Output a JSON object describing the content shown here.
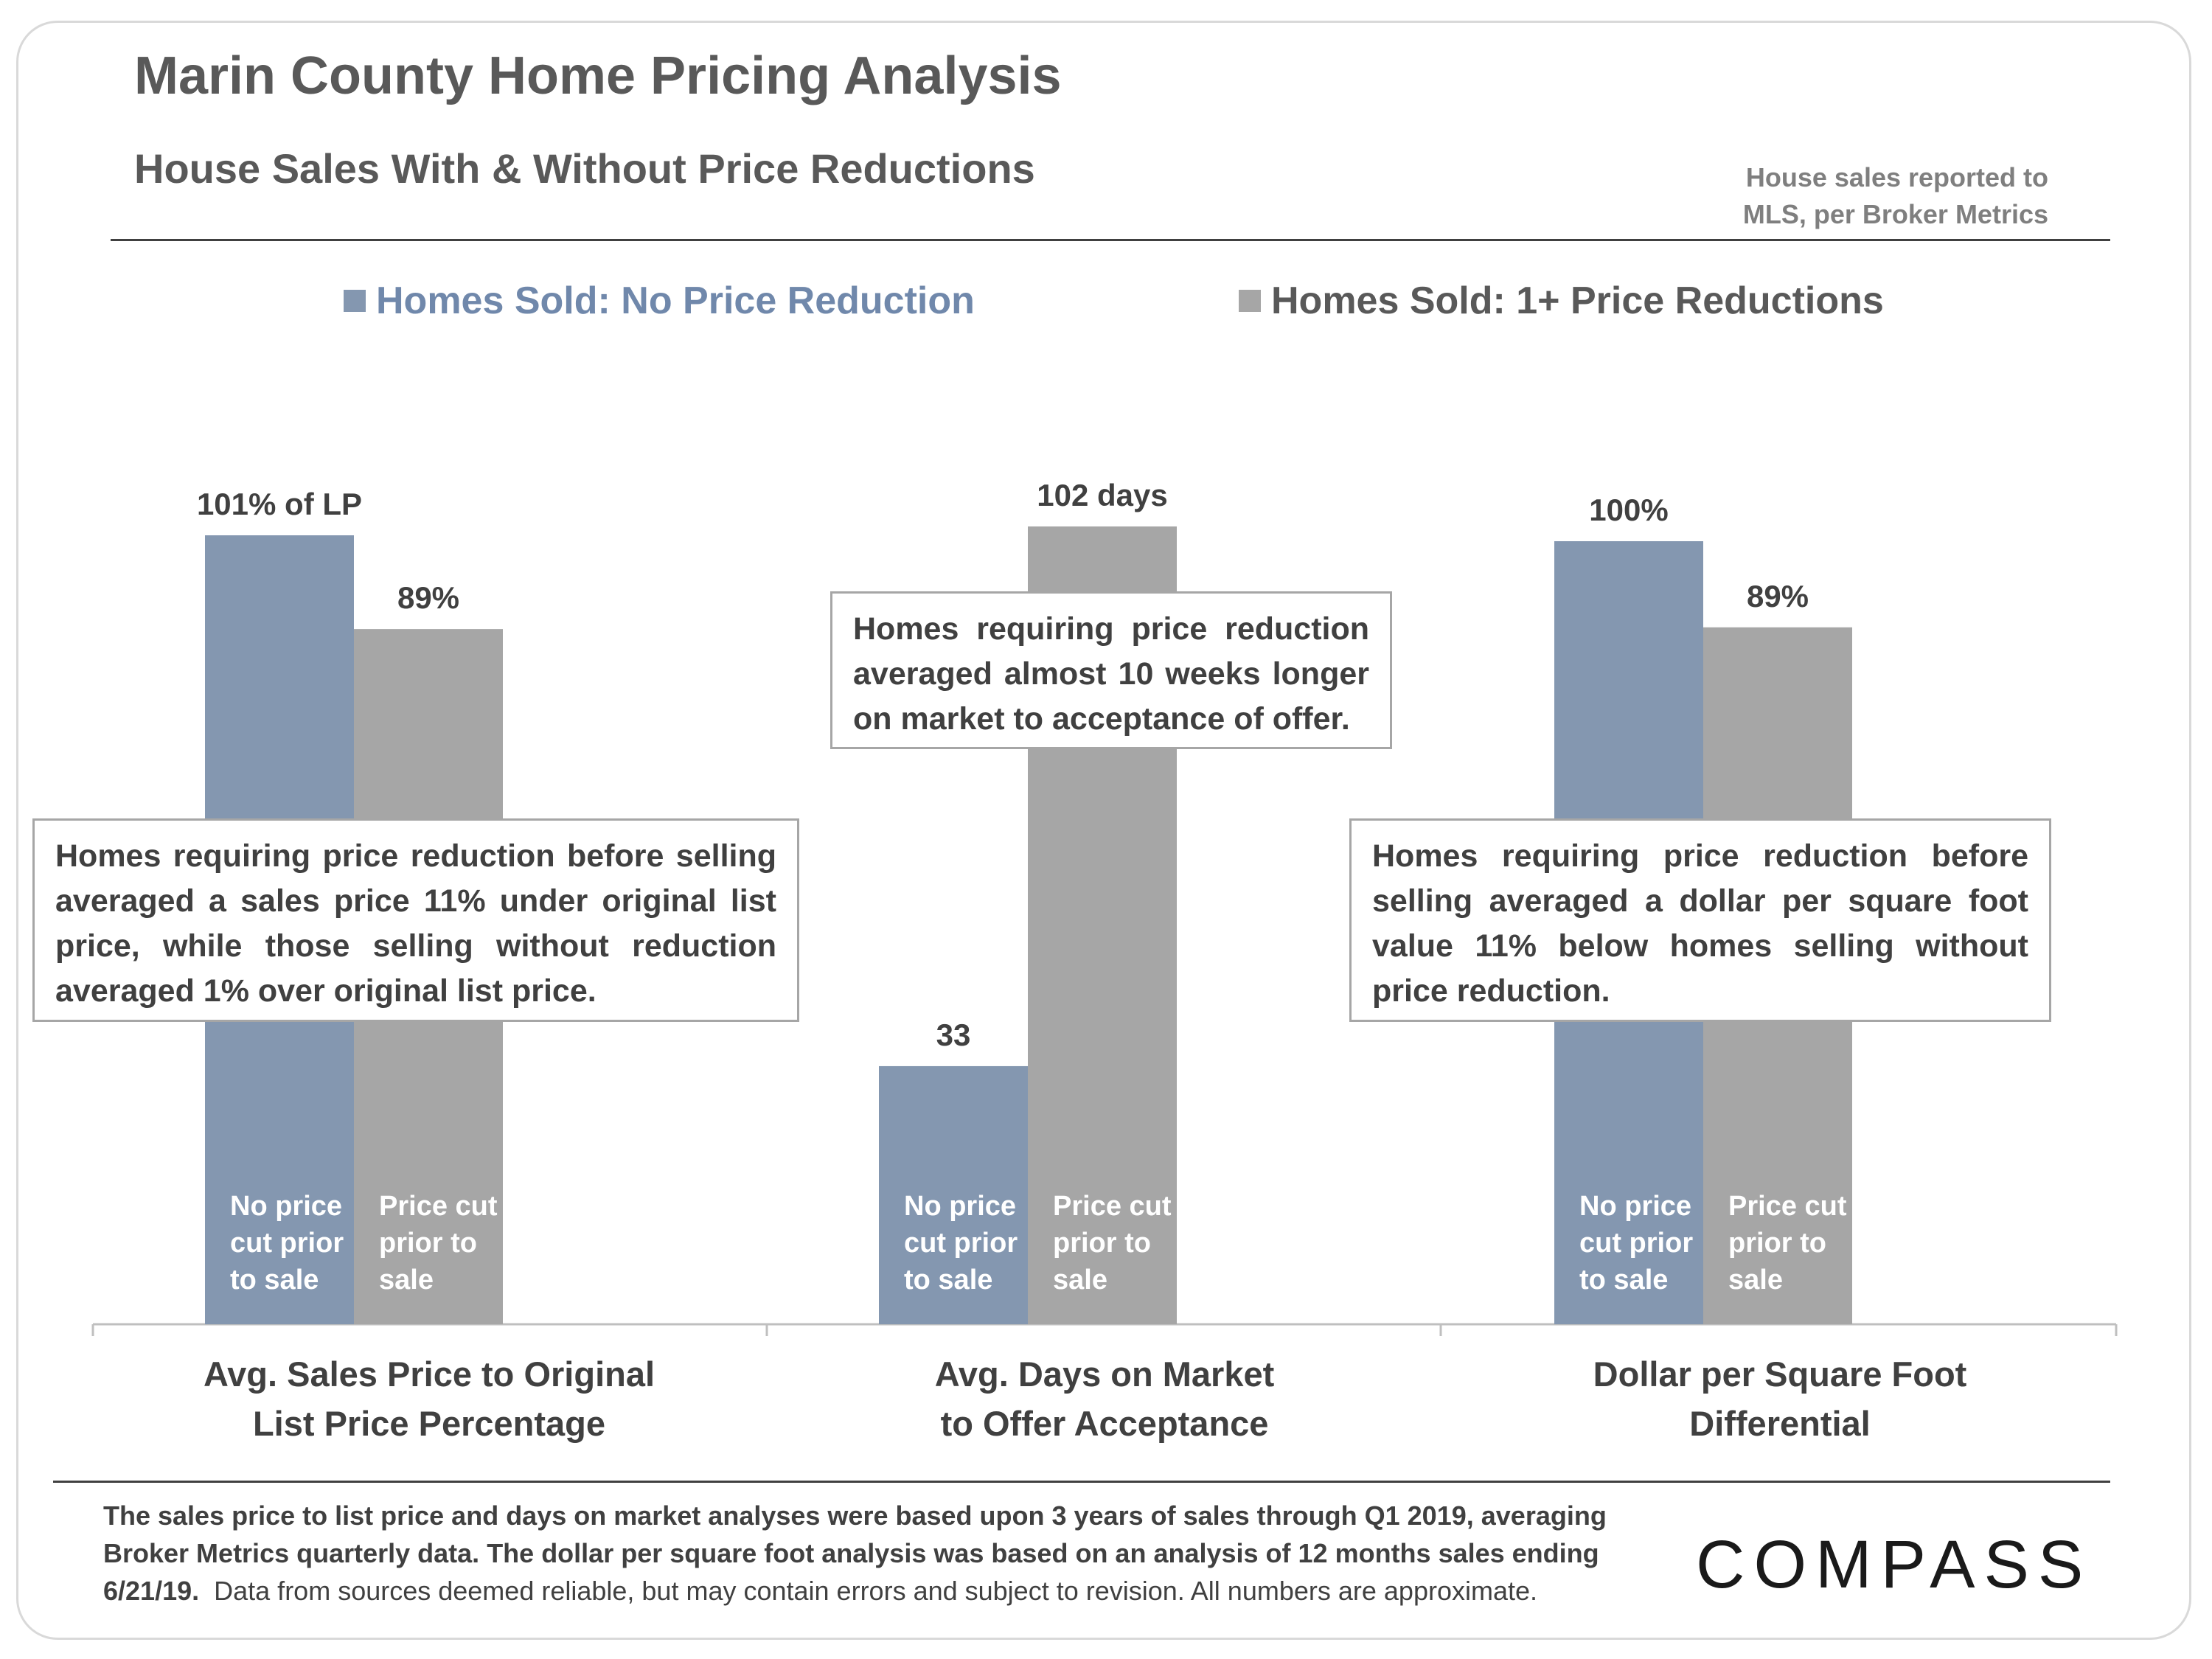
{
  "header": {
    "title": "Marin County Home Pricing Analysis",
    "subtitle": "House Sales With & Without Price Reductions",
    "source_line1": "House sales reported to",
    "source_line2": "MLS, per Broker Metrics"
  },
  "colors": {
    "series_no_reduction": "#8497b0",
    "series_reductions": "#a6a6a6",
    "legend_no_reduction_text": "#7088ab",
    "legend_reductions_text": "#595959"
  },
  "chart_data": {
    "type": "bar",
    "categories": [
      "Avg. Sales Price to Original List Price Percentage",
      "Avg. Days on Market to Offer Acceptance",
      "Dollar per Square Foot Differential"
    ],
    "category_lines": [
      [
        "Avg. Sales Price to Original",
        "List Price Percentage"
      ],
      [
        "Avg. Days on Market",
        "to Offer Acceptance"
      ],
      [
        "Dollar per Square Foot",
        "Differential"
      ]
    ],
    "series": [
      {
        "name": "Homes Sold: No Price Reduction",
        "values": [
          101,
          33,
          100
        ],
        "data_labels": [
          "101% of LP",
          "33",
          "100%"
        ],
        "bar_text": [
          "No price",
          "cut prior",
          "to sale"
        ]
      },
      {
        "name": "Homes Sold: 1+ Price Reductions",
        "values": [
          89,
          102,
          89
        ],
        "data_labels": [
          "89%",
          "102 days",
          "89%"
        ],
        "bar_text": [
          "Price cut",
          "prior to",
          "sale"
        ]
      }
    ],
    "legend": "top",
    "grid": false
  },
  "callouts": [
    "Homes requiring price reduction before selling averaged a sales price 11% under original list price, while those selling without reduction averaged 1% over original list price.",
    "Homes requiring price reduction averaged almost 10 weeks longer on market to acceptance of offer.",
    "Homes requiring price reduction before selling averaged a dollar per square foot value 11% below homes selling without price reduction."
  ],
  "footnote": {
    "bold": "The sales price to list price and days on market analyses were based upon 3 years of sales through Q1 2019, averaging Broker Metrics quarterly data. The dollar per square foot analysis was based on an analysis of 12 months sales ending 6/21/19.",
    "plain": "Data from sources deemed reliable, but may contain errors and subject to revision. All numbers are approximate."
  },
  "logo": "COMPASS"
}
